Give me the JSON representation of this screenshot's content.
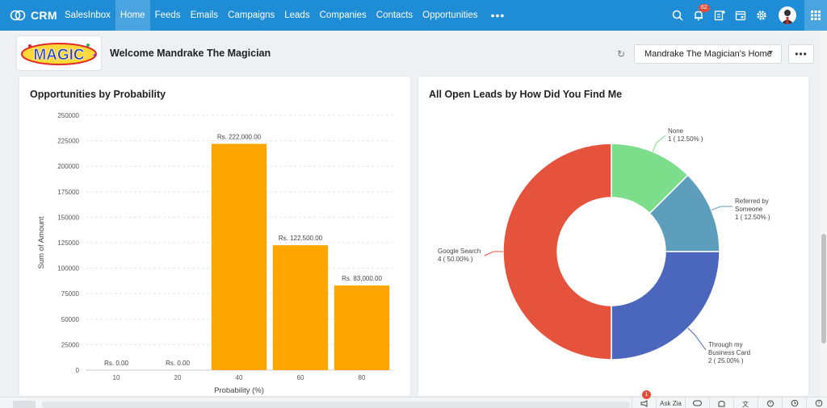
{
  "nav": {
    "brand": "CRM",
    "items": [
      "SalesInbox",
      "Home",
      "Feeds",
      "Emails",
      "Campaigns",
      "Leads",
      "Companies",
      "Contacts",
      "Opportunities"
    ],
    "active_index": 1,
    "more": "•••",
    "notification_count": "62"
  },
  "header": {
    "logo_text": "MAGIC",
    "welcome": "Welcome Mandrake The Magician",
    "home_select": "Mandrake The Magician's Home",
    "more": "•••"
  },
  "colors": {
    "nav_bg": "#1f8dd6",
    "bar": "#ffa500",
    "pie": [
      "#7cde8a",
      "#5e9ebd",
      "#4a66bd",
      "#e5533c"
    ]
  },
  "cards": {
    "bar_title": "Opportunities by Probability",
    "pie_title": "All Open Leads by How Did You Find Me"
  },
  "chart_data": [
    {
      "type": "bar",
      "title": "Opportunities by Probability",
      "categories": [
        "10",
        "20",
        "40",
        "60",
        "80"
      ],
      "values": [
        0,
        0,
        222000,
        122500,
        83000
      ],
      "value_labels": [
        "Rs. 0.00",
        "Rs. 0.00",
        "Rs. 222,000.00",
        "Rs. 122,500.00",
        "Rs. 83,000.00"
      ],
      "xlabel": "Probability (%)",
      "ylabel": "Sum of Amount",
      "ylim": [
        0,
        250000
      ],
      "yticks": [
        "0",
        "25000",
        "50000",
        "75000",
        "100000",
        "125000",
        "150000",
        "175000",
        "200000",
        "225000",
        "250000"
      ],
      "grid": true
    },
    {
      "type": "pie",
      "title": "All Open Leads by How Did You Find Me",
      "donut": true,
      "slices": [
        {
          "name": "None",
          "value": 1,
          "label": "1 ( 12.50% )"
        },
        {
          "name": "Referred by Someone",
          "value": 1,
          "label": "1 ( 12.50% )"
        },
        {
          "name": "Through my Business Card",
          "value": 2,
          "label": "2 ( 25.00% )"
        },
        {
          "name": "Google Search",
          "value": 4,
          "label": "4 ( 50.00% )"
        }
      ]
    }
  ],
  "bottombar": {
    "ask_zia": "Ask Zia",
    "badge": "1"
  }
}
